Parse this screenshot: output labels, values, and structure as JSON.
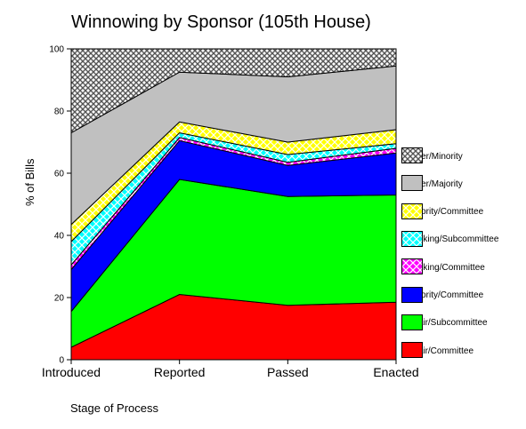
{
  "chart_data": {
    "type": "area",
    "stacked": true,
    "title": "Winnowing by Sponsor (105th House)",
    "xlabel": "Stage of Process",
    "ylabel": "% of Bills",
    "categories": [
      "Introduced",
      "Reported",
      "Passed",
      "Enacted"
    ],
    "ylim": [
      0,
      100
    ],
    "yticks": [
      "0",
      "20",
      "40",
      "60",
      "80",
      "100"
    ],
    "legend_position": "right",
    "series": [
      {
        "name": "Chair/Committee",
        "color": "#ff0000",
        "pattern": "solid",
        "values": [
          4,
          21,
          17.5,
          18.5
        ]
      },
      {
        "name": "Chair/Subcommittee",
        "color": "#00ff00",
        "pattern": "solid",
        "values": [
          11.5,
          37,
          35,
          34.5
        ]
      },
      {
        "name": "Majority/Committee",
        "color": "#0000ff",
        "pattern": "solid",
        "values": [
          13.5,
          12.5,
          10,
          13.5
        ]
      },
      {
        "name": "Ranking/Committee",
        "color": "#ff00ff",
        "pattern": "crosshatch",
        "values": [
          1.5,
          1,
          1,
          1.5
        ]
      },
      {
        "name": "Ranking/Subcommittee",
        "color": "#00ffff",
        "pattern": "crosshatch",
        "values": [
          7.5,
          1.5,
          2.5,
          1.5
        ]
      },
      {
        "name": "Minority/Committee",
        "color": "#ffff00",
        "pattern": "crosshatch",
        "values": [
          5.5,
          3.5,
          4,
          4.5
        ]
      },
      {
        "name": "Other/Majority",
        "color": "#c0c0c0",
        "pattern": "solid",
        "values": [
          29.5,
          16,
          21,
          20.5
        ]
      },
      {
        "name": "Other/Minority",
        "color": "#909090",
        "pattern": "crosshatch-dense",
        "values": [
          27,
          7.5,
          9,
          5.5
        ]
      }
    ]
  }
}
